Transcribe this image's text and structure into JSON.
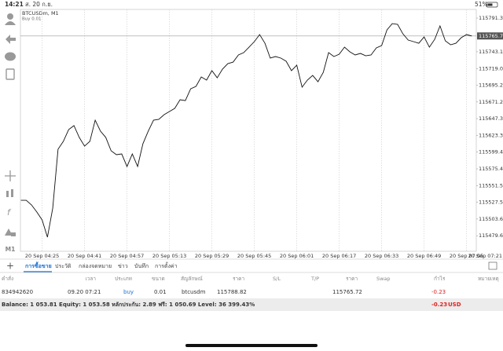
{
  "status_bar": {
    "time": "14:21",
    "date": "ส. 20 ก.ย.",
    "battery": "51%"
  },
  "chart_data": {
    "type": "line",
    "title": "BTCUSDm, M1",
    "subtitle": "Buy 0.01",
    "color": "#111111",
    "grid": true,
    "categories": [
      null,
      null,
      null,
      null,
      "20 Sep 04:25",
      null,
      null,
      null,
      null,
      null,
      null,
      null,
      "20 Sep 04:41",
      null,
      null,
      null,
      null,
      null,
      null,
      null,
      "20 Sep 04:57",
      null,
      null,
      null,
      null,
      null,
      null,
      null,
      "20 Sep 05:13",
      null,
      null,
      null,
      null,
      null,
      null,
      null,
      "20 Sep 05:29",
      null,
      null,
      null,
      null,
      null,
      null,
      null,
      "20 Sep 05:45",
      null,
      null,
      null,
      null,
      null,
      null,
      null,
      "20 Sep 06:01",
      null,
      null,
      null,
      null,
      null,
      null,
      null,
      "20 Sep 06:17",
      null,
      null,
      null,
      null,
      null,
      null,
      null,
      "20 Sep 06:33",
      null,
      null,
      null,
      null,
      null,
      null,
      null,
      "20 Sep 06:49",
      null,
      null,
      null,
      null,
      null,
      null,
      null,
      "20 Sep 07:05",
      null
    ],
    "values": [
      115530.4,
      115530.4,
      115523.7,
      115513.6,
      115502.3,
      115477.6,
      115519.2,
      115603.5,
      115614.8,
      115631.6,
      115637.3,
      115620.4,
      115608.0,
      115614.8,
      115645.1,
      115629.4,
      115620.4,
      115601.3,
      115595.7,
      115596.8,
      115578.8,
      115596.8,
      115578.8,
      115611.4,
      115629.4,
      115645.1,
      115646.3,
      115653.0,
      115657.5,
      115662.0,
      115674.4,
      115673.2,
      115690.1,
      115693.5,
      115707.0,
      115702.5,
      115716.0,
      115705.8,
      115718.2,
      115726.1,
      115728.3,
      115738.5,
      115741.8,
      115749.7,
      115757.6,
      115767.7,
      115755.3,
      115734.0,
      115736.2,
      115734.0,
      115729.5,
      115716.0,
      115723.8,
      115692.4,
      115702.5,
      115709.2,
      115700.2,
      115713.7,
      115741.8,
      115736.2,
      115739.6,
      115749.7,
      115743.0,
      115738.5,
      115740.7,
      115737.3,
      115738.5,
      115748.6,
      115751.9,
      115774.4,
      115783.4,
      115782.3,
      115768.8,
      115759.8,
      115757.6,
      115755.3,
      115764.3,
      115749.7,
      115760.9,
      115780.1,
      115758.7,
      115753.1,
      115755.3,
      115763.2,
      115767.7,
      115765.72
    ],
    "x_end_label": "20 Sep 07:21",
    "current_price": 115765.72,
    "ylim": [
      115457.4,
      115803.7
    ],
    "yticks": [
      {
        "value": 115791.3,
        "label": "115791.30"
      },
      {
        "value": 115743.1,
        "label": "115743.10"
      },
      {
        "value": 115719,
        "label": "115719.00"
      },
      {
        "value": 115695.2,
        "label": "115695.20"
      },
      115671.25,
      {
        "value": 115647.3,
        "label": "115647.30"
      },
      115623.35,
      {
        "value": 115599.4,
        "label": "115599.40"
      },
      115575.45,
      {
        "value": 115551.5,
        "label": "115551.50"
      },
      115527.55,
      {
        "value": 115503.6,
        "label": "115503.60"
      },
      115479.65
    ]
  },
  "sidebar": {
    "timeframe": "M1"
  },
  "tabs": [
    "การซื้อขาย",
    "ประวัติ",
    "กล่องจดหมาย",
    "ข่าว",
    "บันทึก",
    "การตั้งค่า"
  ],
  "table": {
    "header": [
      "คำสั่ง",
      "เวลา",
      "ประเภท",
      "ขนาด",
      "สัญลักษณ์",
      "ราคา",
      "S/L",
      "T/P",
      "ราคา",
      "Swap",
      "กำไร",
      "หมายเหตุ"
    ],
    "rows": [
      {
        "order": "834942620",
        "time": "09.20 07:21",
        "type": "buy",
        "volume": "0.01",
        "symbol": "btcusdm",
        "open_price": "115788.82",
        "price": "115765.72",
        "profit": "-0.23"
      }
    ]
  },
  "summary": {
    "text": "Balance: 1 053.81 Equity: 1 053.58 หลักประกัน: 2.89 ฟรี: 1 050.69 Level: 36 399.43%",
    "profit": "-0.23",
    "currency": "USD"
  }
}
